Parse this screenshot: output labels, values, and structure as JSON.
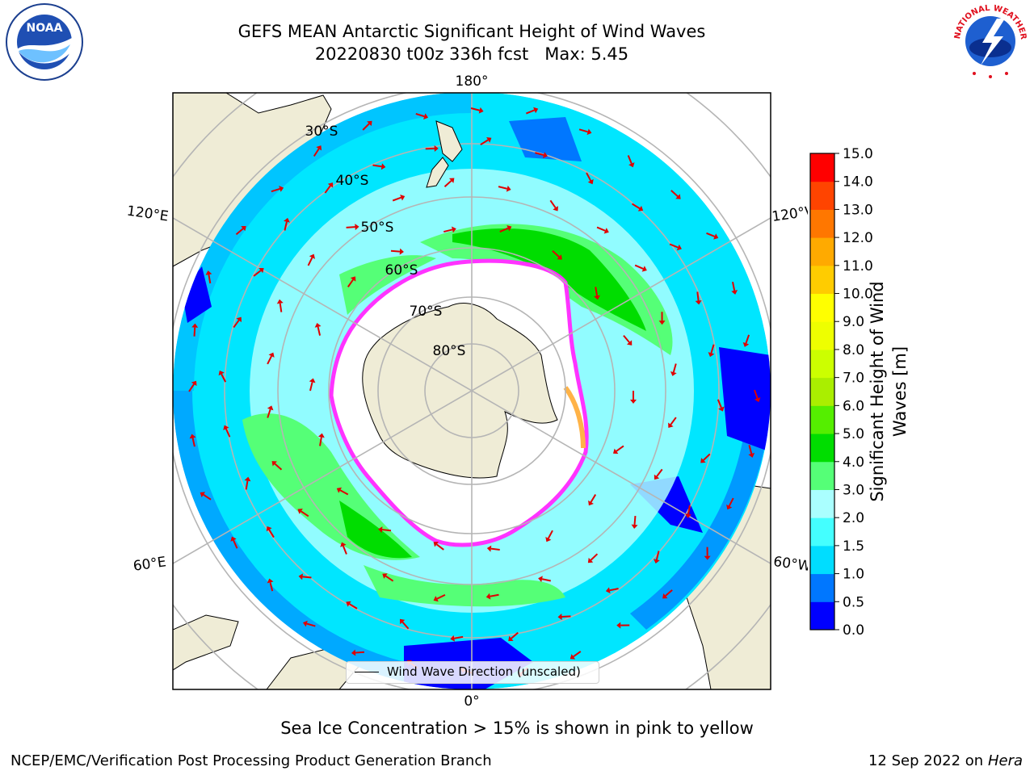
{
  "title": {
    "line1": "GEFS MEAN Antarctic Significant Height of Wind Waves",
    "line2": "20220830 t00z 336h fcst   Max: 5.45"
  },
  "map": {
    "projection": "south polar stereographic",
    "longitude_labels": {
      "top": "180°",
      "bottom": "0°",
      "upper_left": "120°E",
      "upper_right": "120°W",
      "lower_left": "60°E",
      "lower_right": "60°W"
    },
    "latitude_labels": [
      "30°S",
      "40°S",
      "50°S",
      "60°S",
      "70°S",
      "80°S"
    ],
    "colors": {
      "land": "#efecd6",
      "gridlines": "#b5b5b5",
      "wind_arrows": "#e00000",
      "sea_ice_edge": [
        "#ff33ff",
        "#ffb347"
      ]
    }
  },
  "legend": {
    "label": "Wind Wave Direction (unscaled)"
  },
  "colorbar": {
    "label": "Significant Height of Wind Waves [m]",
    "ticks": [
      "15.0",
      "14.0",
      "13.0",
      "12.0",
      "11.0",
      "10.0",
      "9.0",
      "8.0",
      "7.0",
      "6.0",
      "5.0",
      "4.0",
      "3.0",
      "2.0",
      "1.5",
      "1.0",
      "0.5",
      "0.0"
    ],
    "colors": [
      "#0000ff",
      "#0077ff",
      "#00ddff",
      "#44ffff",
      "#aaffff",
      "#55ff77",
      "#00dd00",
      "#55ee00",
      "#aaee00",
      "#ccff00",
      "#eeff00",
      "#ffff00",
      "#ffcc00",
      "#ffaa00",
      "#ff7700",
      "#ff4400",
      "#ff0000"
    ]
  },
  "footer": {
    "note": "Sea Ice Concentration > 15% is shown in pink to yellow",
    "credit": "NCEP/EMC/Verification Post Processing Product Generation Branch",
    "date": "12 Sep 2022 on",
    "host": "Hera"
  },
  "logos": {
    "left": "NOAA",
    "right": "NATIONAL WEATHER SERVICE"
  }
}
